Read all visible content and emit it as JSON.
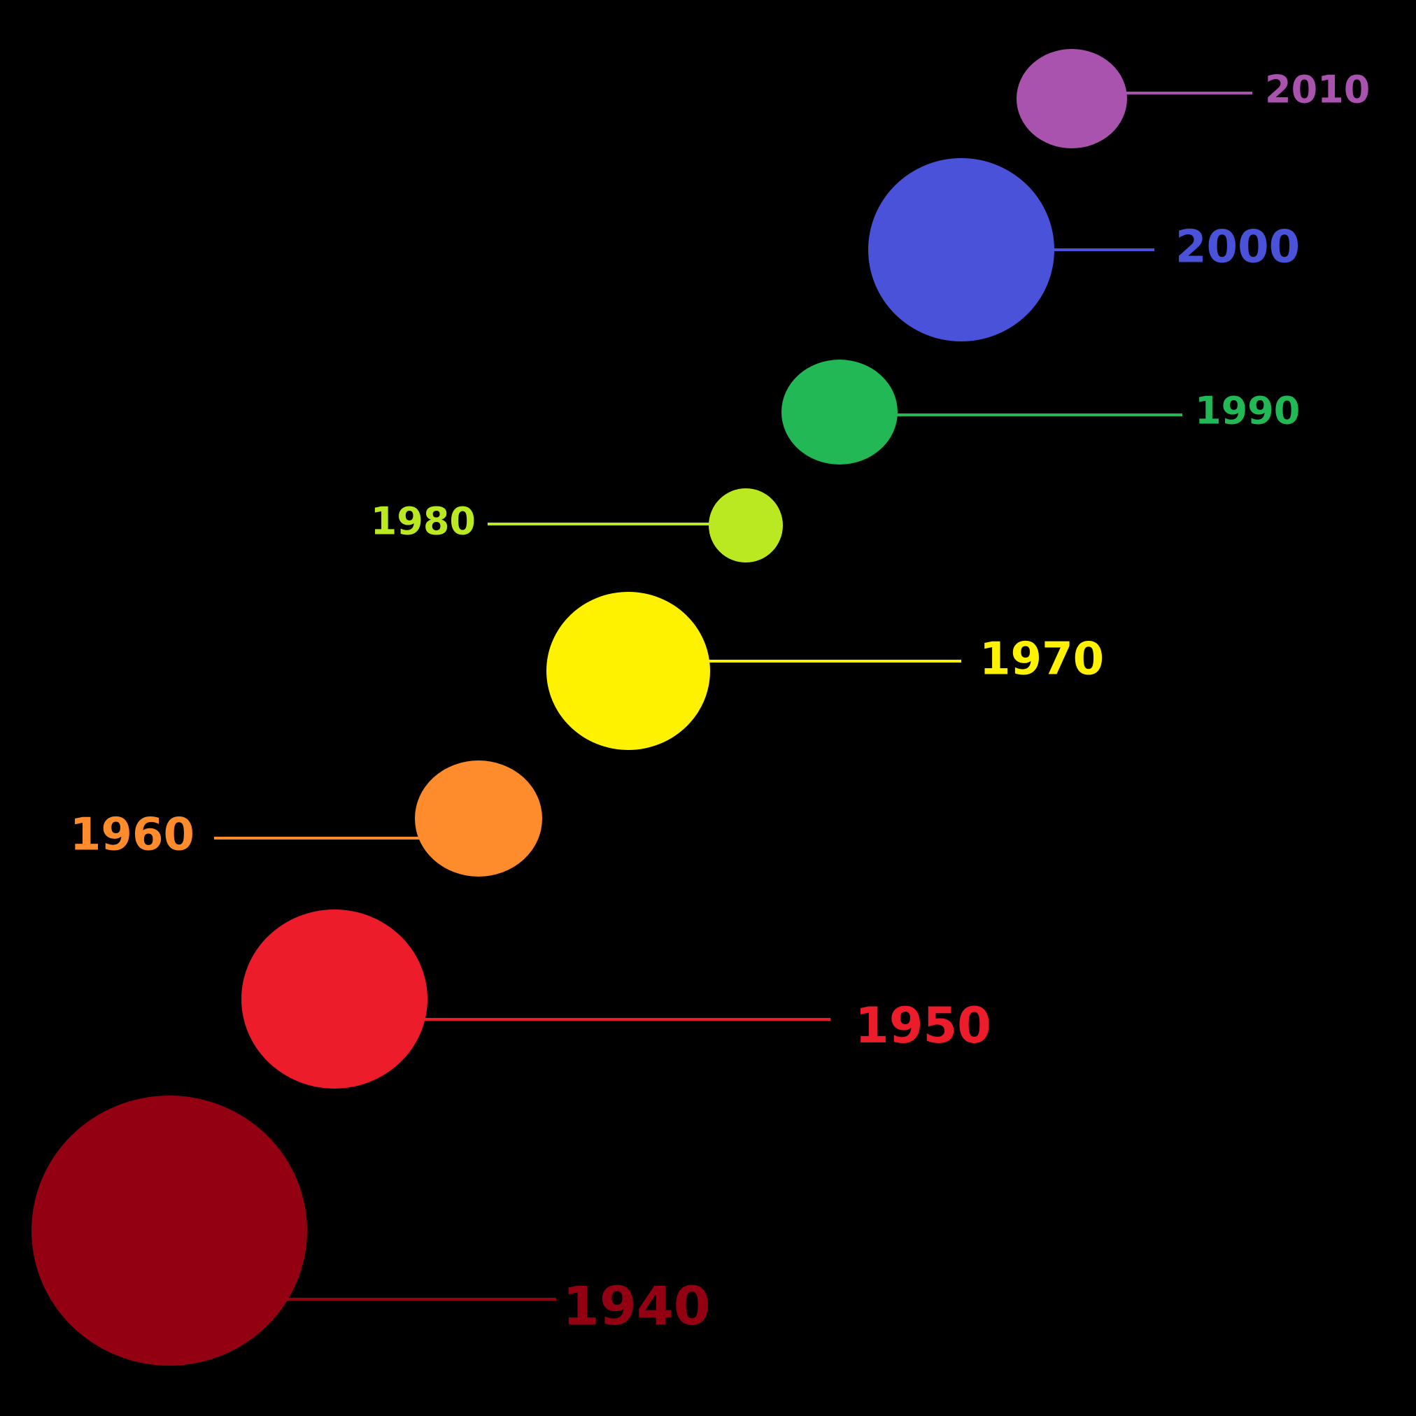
{
  "background": "#000000",
  "decades": [
    {
      "id": "1940",
      "label": "1940",
      "color": "#930012"
    },
    {
      "id": "1950",
      "label": "1950",
      "color": "#ED1C2A"
    },
    {
      "id": "1960",
      "label": "1960",
      "color": "#FF8C2C"
    },
    {
      "id": "1970",
      "label": "1970",
      "color": "#FFF200"
    },
    {
      "id": "1980",
      "label": "1980",
      "color": "#BBE921"
    },
    {
      "id": "1990",
      "label": "1990",
      "color": "#22B855"
    },
    {
      "id": "2000",
      "label": "2000",
      "color": "#4952D8"
    },
    {
      "id": "2010",
      "label": "2010",
      "color": "#A953AF"
    }
  ]
}
